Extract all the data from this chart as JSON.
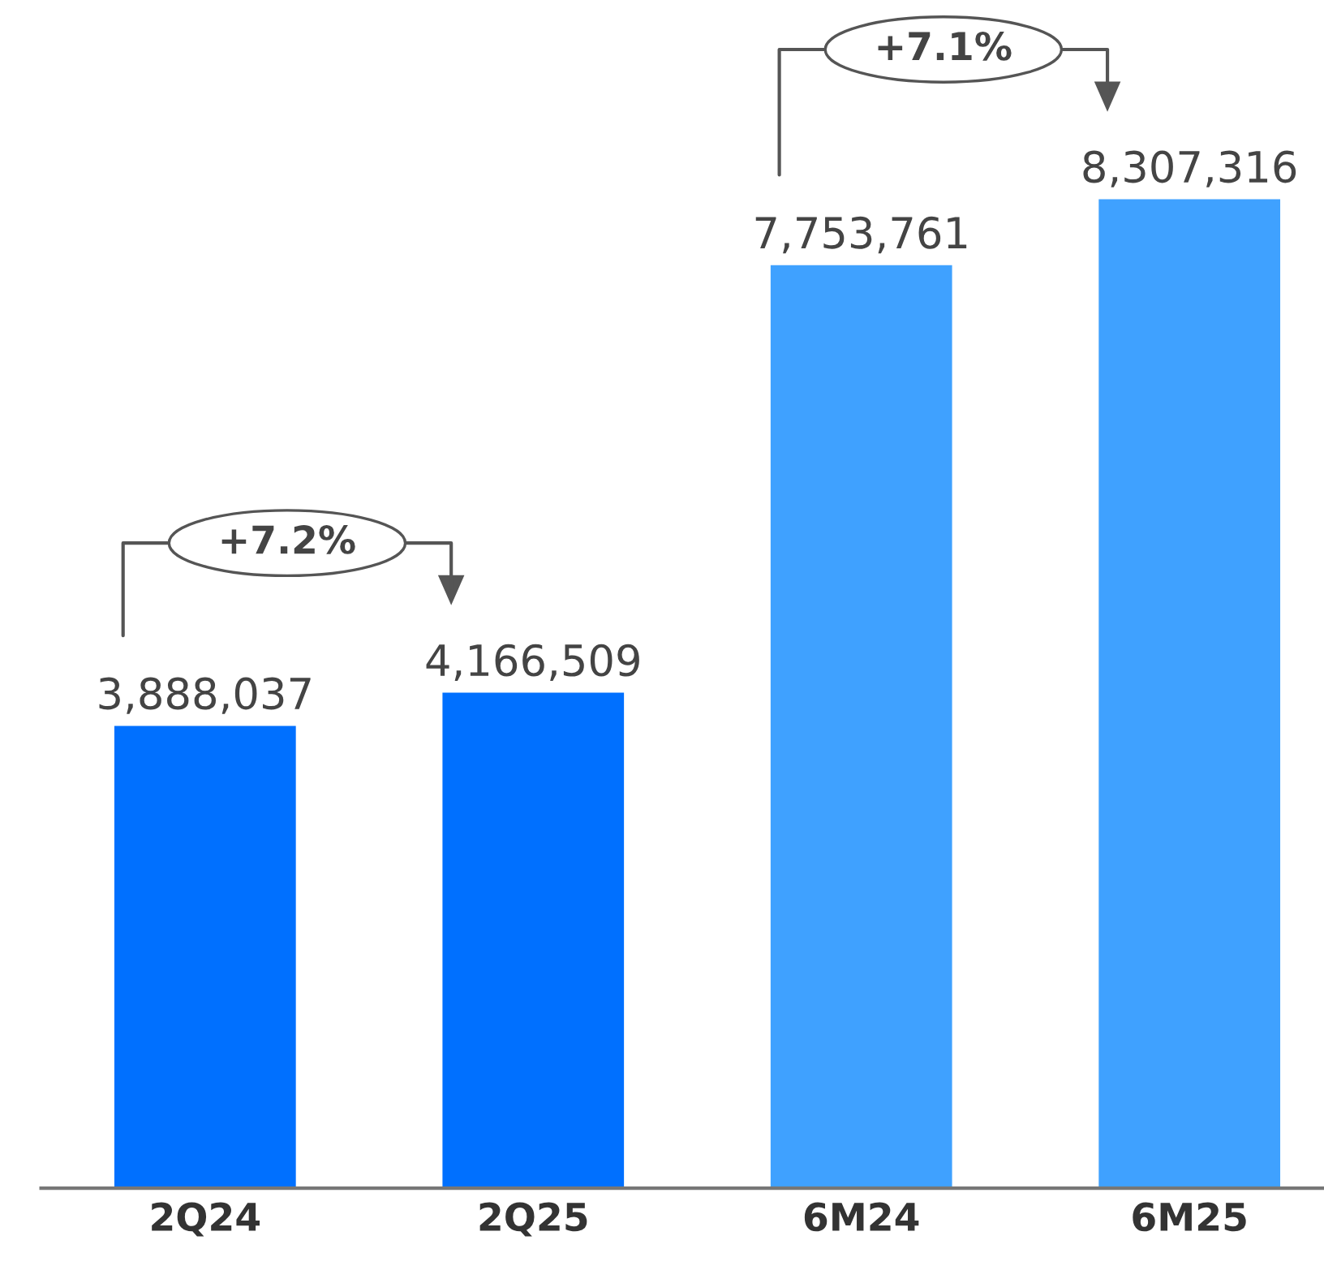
{
  "chart_data": {
    "type": "bar",
    "categories": [
      "2Q24",
      "2Q25",
      "6M24",
      "6M25"
    ],
    "values": [
      3888037,
      4166509,
      7753761,
      8307316
    ],
    "colors": [
      "#0070ff",
      "#0070ff",
      "#3fa1ff",
      "#3fa1ff"
    ],
    "data_labels": true,
    "value_labels": [
      "3,888,037",
      "4,166,509",
      "7,753,761",
      "8,307,316"
    ],
    "annotations": [
      "+7.2%",
      "+7.1%"
    ],
    "tick_labels": "x"
  }
}
